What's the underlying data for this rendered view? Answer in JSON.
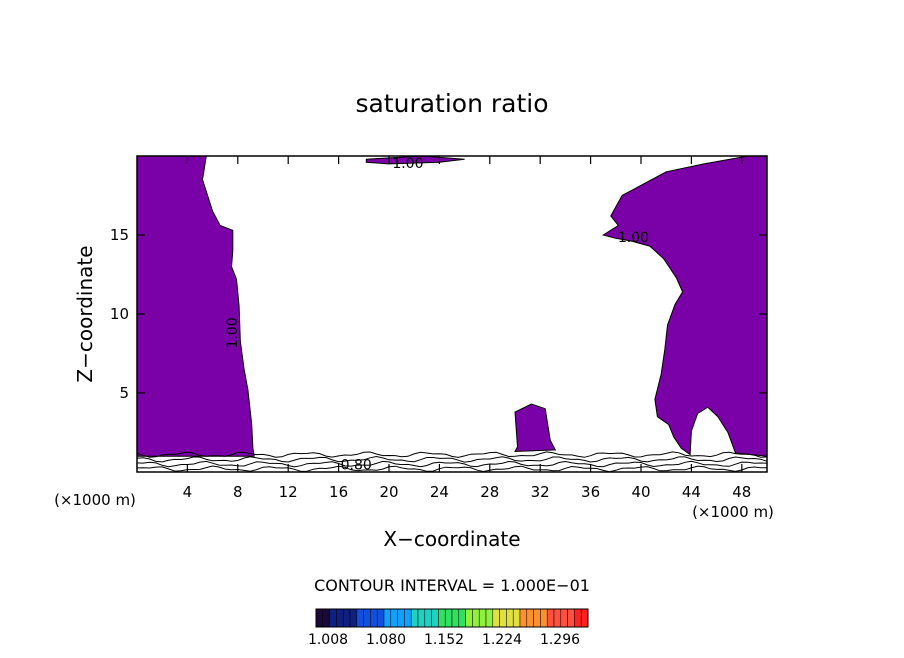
{
  "chart_data": {
    "type": "contour",
    "title": "saturation ratio",
    "xlabel": "X−coordinate",
    "ylabel": "Z−coordinate",
    "x_unit": "(×1000 m)",
    "y_unit": "(×1000 m)",
    "xlim": [
      0,
      50
    ],
    "ylim": [
      0,
      20
    ],
    "x_ticks": [
      4,
      8,
      12,
      16,
      20,
      24,
      28,
      32,
      36,
      40,
      44,
      48
    ],
    "y_ticks": [
      5,
      10,
      15
    ],
    "contour_interval_text": "CONTOUR INTERVAL = 1.000E−01",
    "colorbar": {
      "tick_labels": [
        "1.008",
        "1.080",
        "1.152",
        "1.224",
        "1.296"
      ],
      "colors": [
        "#1a0a3c",
        "#102080",
        "#1050e0",
        "#10a0ff",
        "#20d0c0",
        "#30e060",
        "#90f040",
        "#e0e040",
        "#ff9030",
        "#ff5040",
        "#ff2020"
      ]
    },
    "saturated_fill_color": "#7a00a8",
    "contour_labels": [
      {
        "text": "1.00",
        "x": 21.5,
        "z": 19.5,
        "rotate": 0
      },
      {
        "text": "1.00",
        "x": 39.4,
        "z": 14.8,
        "rotate": 0
      },
      {
        "text": "1.00",
        "x": 7.6,
        "z": 8.8,
        "rotate": -90
      },
      {
        "text": "0.80",
        "x": 17.4,
        "z": 0.4,
        "rotate": 0
      }
    ],
    "regions": [
      {
        "name": "left-saturated-column",
        "points": [
          [
            0,
            20
          ],
          [
            5.5,
            20
          ],
          [
            5.2,
            18.5
          ],
          [
            5.6,
            17.5
          ],
          [
            6.0,
            16.5
          ],
          [
            6.6,
            15.6
          ],
          [
            7.6,
            15.3
          ],
          [
            7.6,
            14.0
          ],
          [
            7.5,
            13.0
          ],
          [
            7.9,
            12.2
          ],
          [
            8.1,
            10.5
          ],
          [
            8.2,
            8.3
          ],
          [
            8.5,
            6.5
          ],
          [
            8.8,
            5.2
          ],
          [
            9.1,
            3.0
          ],
          [
            9.2,
            1.5
          ],
          [
            9.3,
            1.0
          ],
          [
            0,
            1.0
          ]
        ]
      },
      {
        "name": "top-saturated-strip",
        "points": [
          [
            18.2,
            19.8
          ],
          [
            22.6,
            20
          ],
          [
            26.0,
            19.8
          ],
          [
            24.0,
            19.6
          ],
          [
            20.0,
            19.5
          ],
          [
            18.2,
            19.6
          ]
        ]
      },
      {
        "name": "right-saturated-column",
        "points": [
          [
            50,
            20
          ],
          [
            48.5,
            20
          ],
          [
            45.0,
            19.5
          ],
          [
            42.0,
            19.0
          ],
          [
            38.5,
            17.5
          ],
          [
            37.6,
            16.2
          ],
          [
            38.2,
            15.6
          ],
          [
            37.0,
            15.0
          ],
          [
            38.0,
            14.8
          ],
          [
            39.3,
            14.6
          ],
          [
            40.7,
            14.3
          ],
          [
            41.8,
            13.5
          ],
          [
            42.8,
            12.3
          ],
          [
            43.3,
            11.4
          ],
          [
            42.7,
            10.6
          ],
          [
            42.1,
            9.3
          ],
          [
            41.9,
            7.8
          ],
          [
            41.6,
            6.2
          ],
          [
            41.1,
            4.6
          ],
          [
            41.3,
            3.5
          ],
          [
            42.2,
            3.0
          ],
          [
            42.6,
            2.2
          ],
          [
            43.2,
            1.5
          ],
          [
            43.9,
            1.1
          ],
          [
            44.0,
            2.6
          ],
          [
            44.5,
            3.7
          ],
          [
            45.3,
            4.1
          ],
          [
            46.1,
            3.5
          ],
          [
            46.9,
            2.5
          ],
          [
            47.5,
            1.2
          ],
          [
            50,
            1.0
          ]
        ]
      },
      {
        "name": "center-saturated-blob",
        "points": [
          [
            30.2,
            1.6
          ],
          [
            30.0,
            3.8
          ],
          [
            31.3,
            4.3
          ],
          [
            32.4,
            4.0
          ],
          [
            32.8,
            2.0
          ],
          [
            33.2,
            1.4
          ],
          [
            30.0,
            1.3
          ]
        ]
      }
    ],
    "layers_z": [
      0.2,
      0.5,
      0.8,
      1.1
    ]
  }
}
